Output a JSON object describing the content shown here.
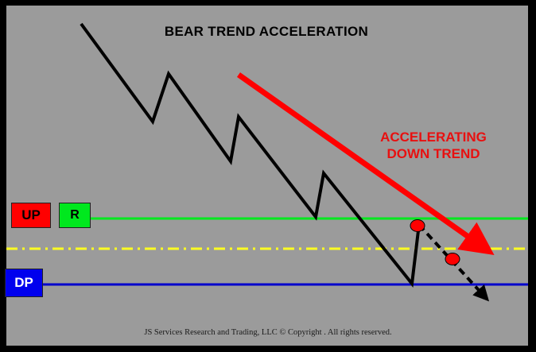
{
  "title": "BEAR TREND ACCELERATION",
  "annotation": {
    "line1": "ACCELERATING",
    "line2": "DOWN TREND"
  },
  "boxes": {
    "up": "UP",
    "r": "R",
    "dp": "DP"
  },
  "footer": "JS Services Research  and Trading, LLC © Copyright          . All rights reserved.",
  "colors": {
    "background": "#9b9b9b",
    "frame": "#000000",
    "price_path": "#000000",
    "trend_arrow": "#ff0000",
    "resistance_line": "#00e81e",
    "dashdot_line": "#ffff22",
    "dp_line": "#0000cc",
    "marker": "#ff0000"
  }
}
